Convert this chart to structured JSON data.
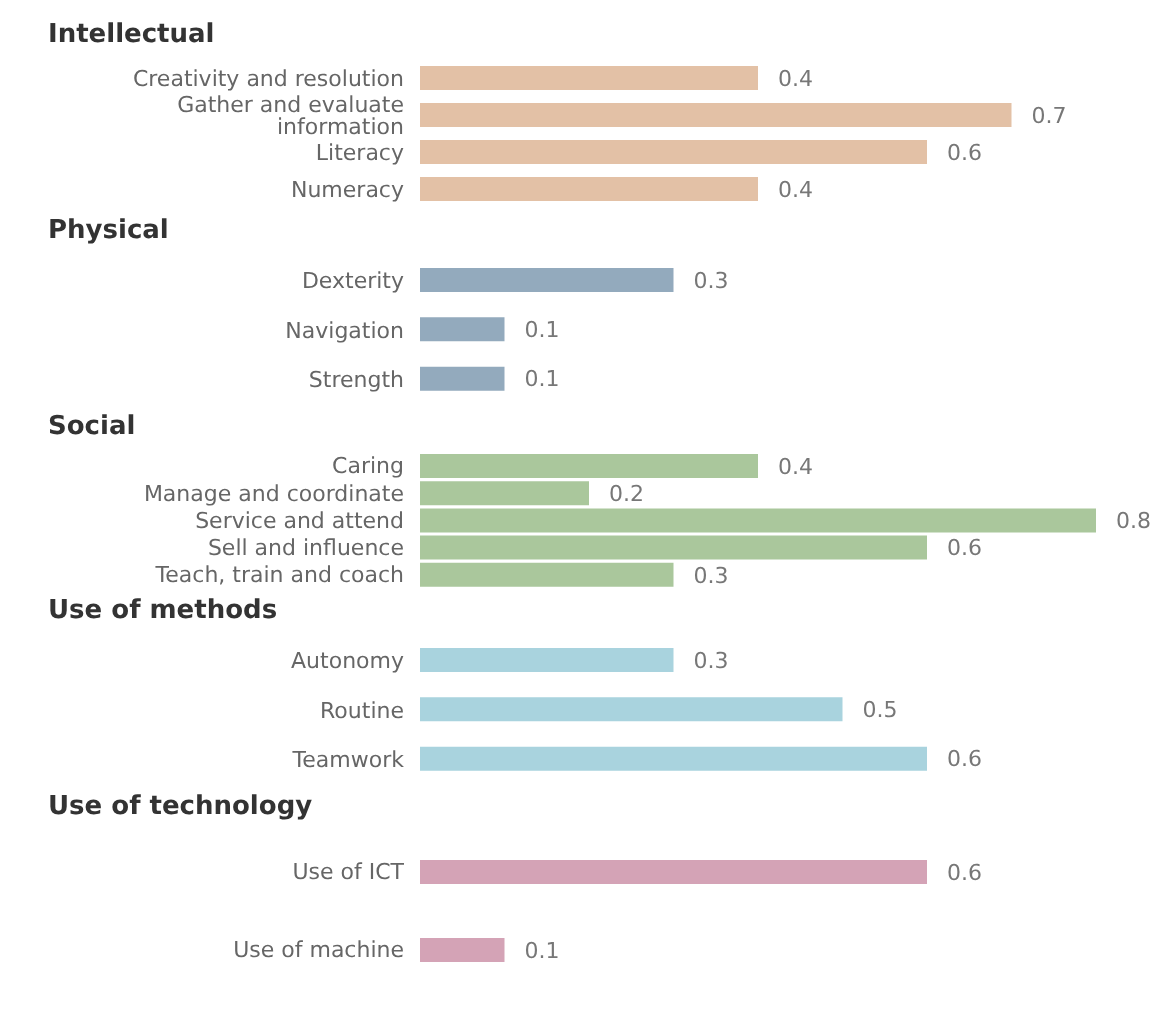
{
  "chart_data": [
    {
      "type": "bar",
      "orientation": "horizontal",
      "title": "Intellectual",
      "categories": [
        "Creativity and resolution",
        "Gather and evaluate information",
        "Literacy",
        "Numeracy"
      ],
      "values": [
        0.4,
        0.7,
        0.6,
        0.4
      ],
      "color": "#e3c1a6",
      "data_labels": true
    },
    {
      "type": "bar",
      "orientation": "horizontal",
      "title": "Physical",
      "categories": [
        "Dexterity",
        "Navigation",
        "Strength"
      ],
      "values": [
        0.3,
        0.1,
        0.1
      ],
      "color": "#93aabd",
      "data_labels": true
    },
    {
      "type": "bar",
      "orientation": "horizontal",
      "title": "Social",
      "categories": [
        "Caring",
        "Manage and coordinate",
        "Service and attend",
        "Sell and influence",
        "Teach, train and coach"
      ],
      "values": [
        0.4,
        0.2,
        0.8,
        0.6,
        0.3
      ],
      "color": "#aac79c",
      "data_labels": true
    },
    {
      "type": "bar",
      "orientation": "horizontal",
      "title": "Use of methods",
      "categories": [
        "Autonomy",
        "Routine",
        "Teamwork"
      ],
      "values": [
        0.3,
        0.5,
        0.6
      ],
      "color": "#a9d3de",
      "data_labels": true
    },
    {
      "type": "bar",
      "orientation": "horizontal",
      "title": "Use of technology",
      "categories": [
        "Use of ICT",
        "Use of machine"
      ],
      "values": [
        0.6,
        0.1
      ],
      "color": "#d4a3b6",
      "data_labels": true
    }
  ]
}
